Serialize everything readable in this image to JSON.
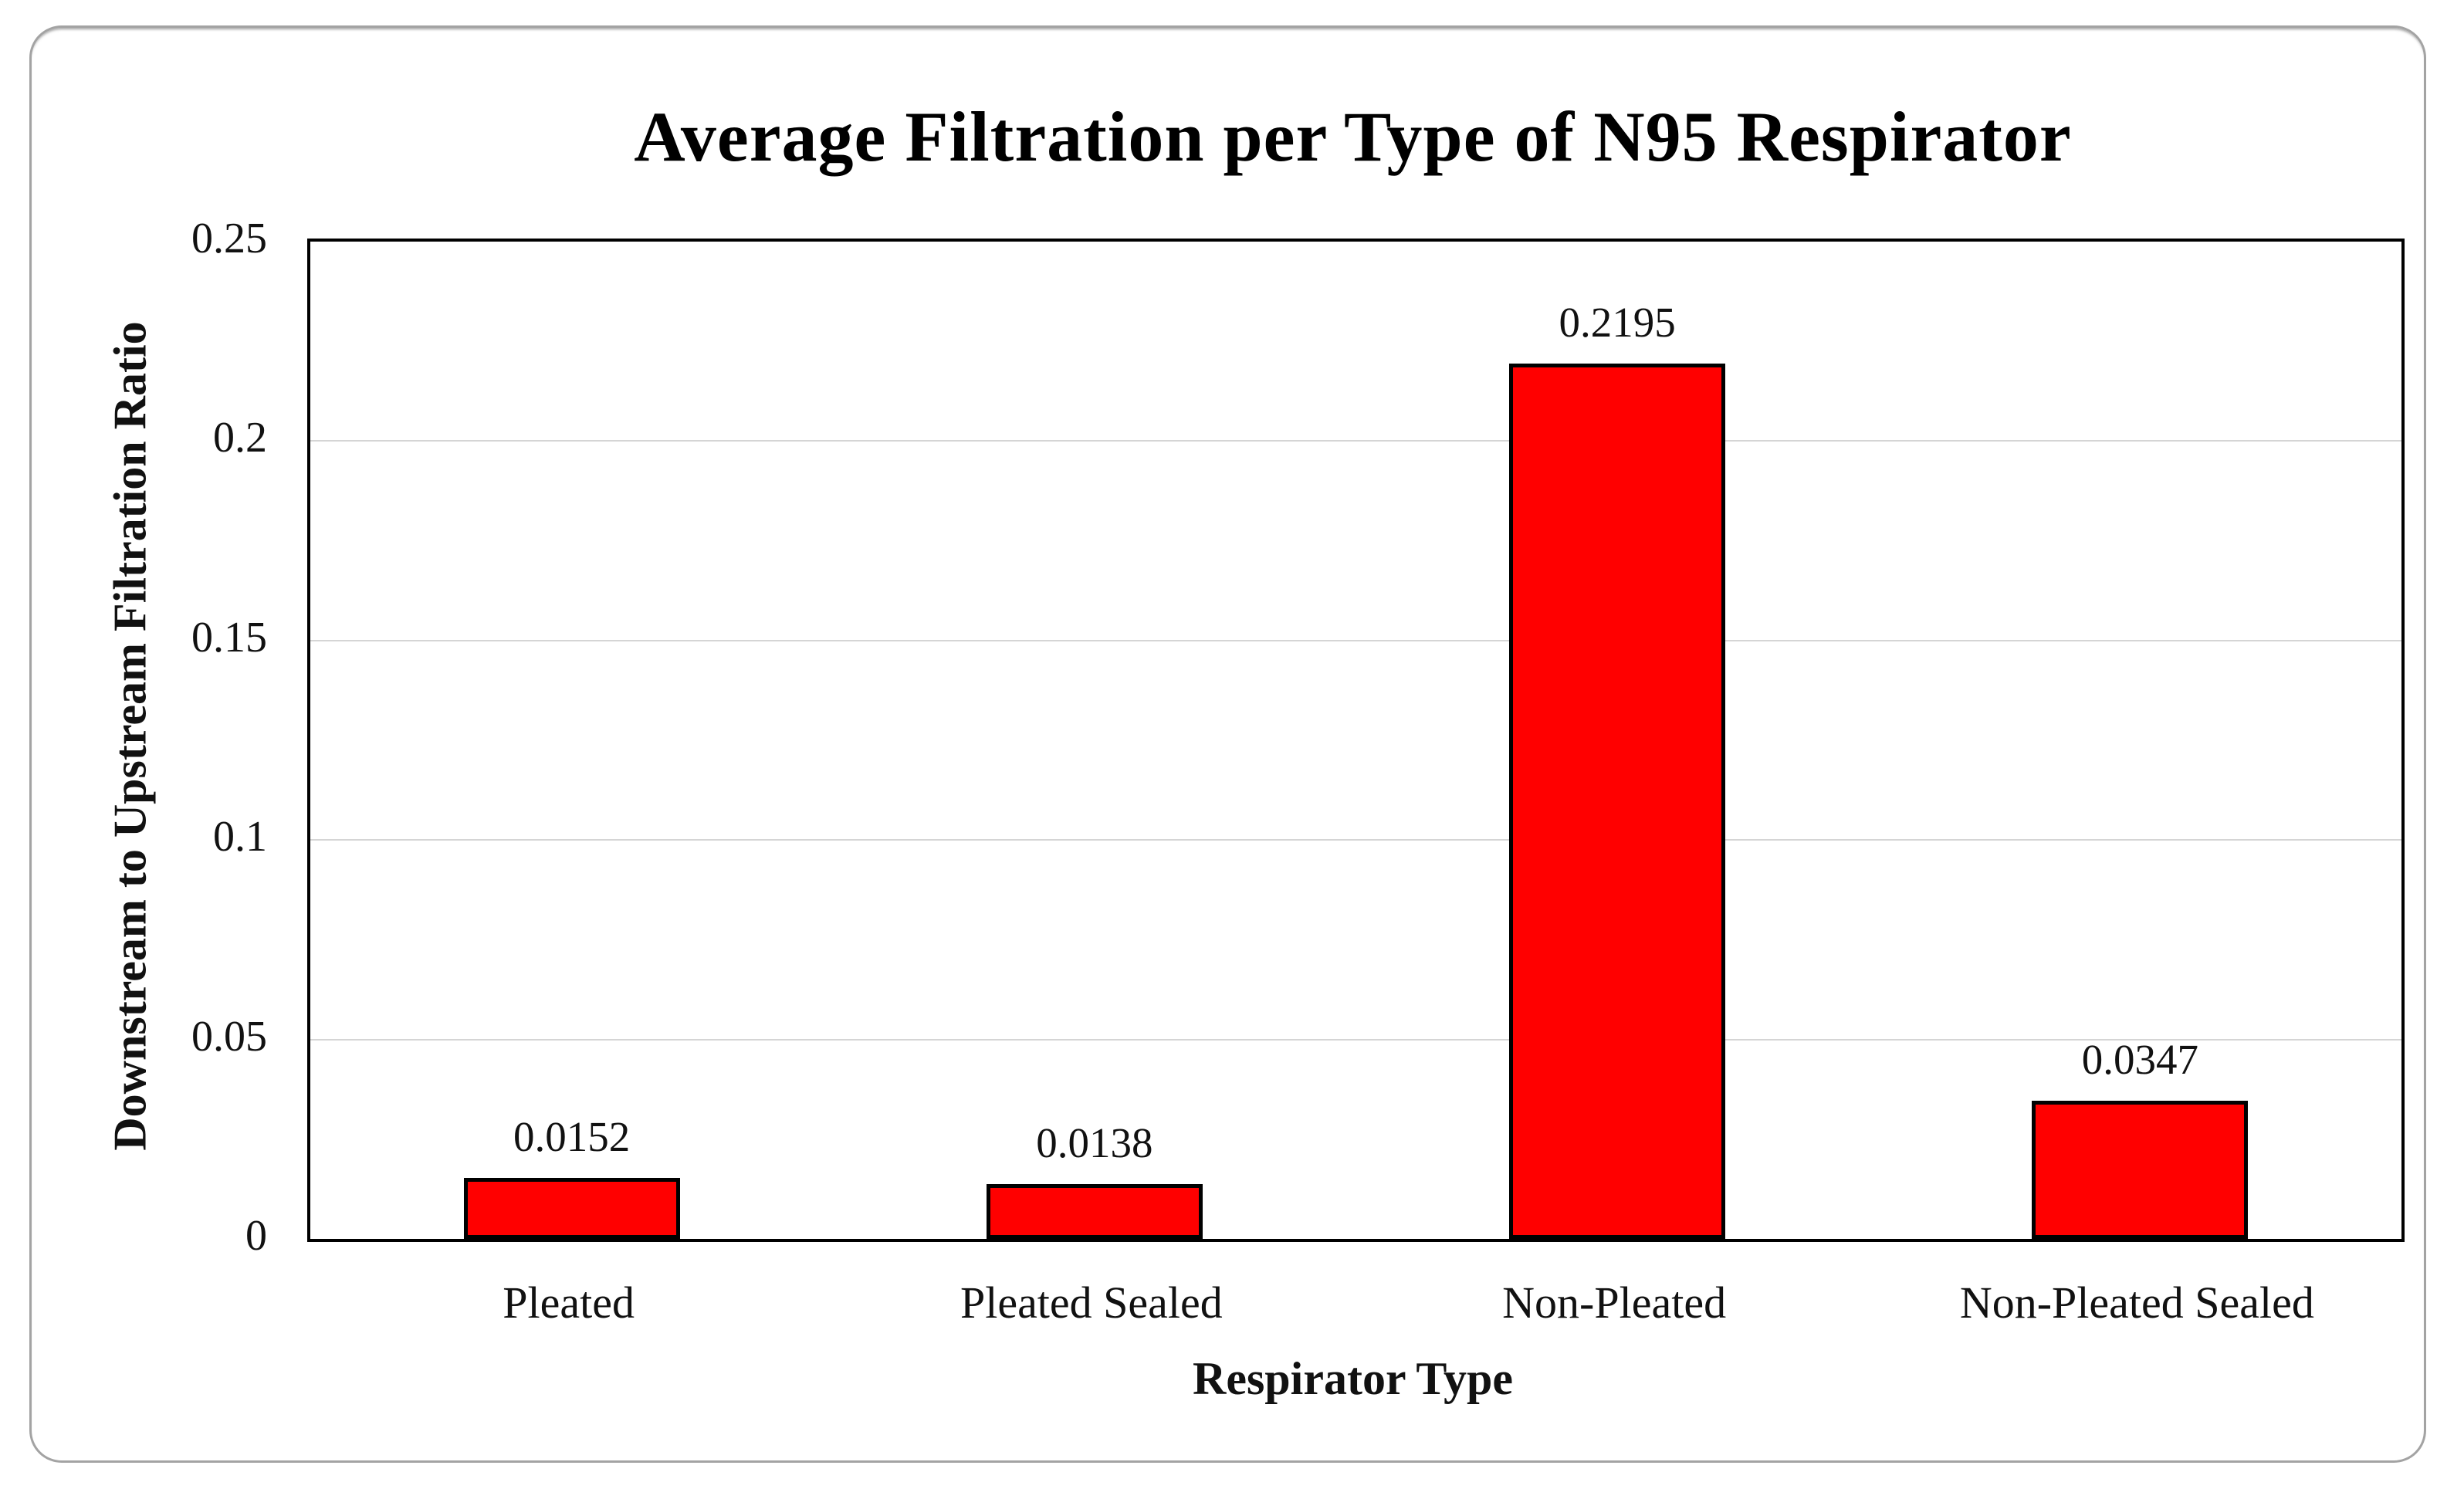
{
  "chart_data": {
    "type": "bar",
    "title": "Average Filtration per Type of N95 Respirator",
    "xlabel": "Respirator Type",
    "ylabel": "Downstream to Upstream Filtration Ratio",
    "categories": [
      "Pleated",
      "Pleated Sealed",
      "Non-Pleated",
      "Non-Pleated Sealed"
    ],
    "values": [
      0.0152,
      0.0138,
      0.2195,
      0.0347
    ],
    "data_labels": [
      "0.0152",
      "0.0138",
      "0.2195",
      "0.0347"
    ],
    "ylim": [
      0,
      0.25
    ],
    "ytick_interval": 0.05,
    "ytick_labels": [
      "0",
      "0.05",
      "0.1",
      "0.15",
      "0.2",
      "0.25"
    ],
    "grid": "horizontal gridlines on, vertical off",
    "legend": "none",
    "bar_color": "#FF0000",
    "bar_border_color": "#000000",
    "gridline_color": "#d5d5d5",
    "plot_border_color": "#000000",
    "frame_border_color": "#a3a3a3",
    "text_color": "#111111"
  }
}
